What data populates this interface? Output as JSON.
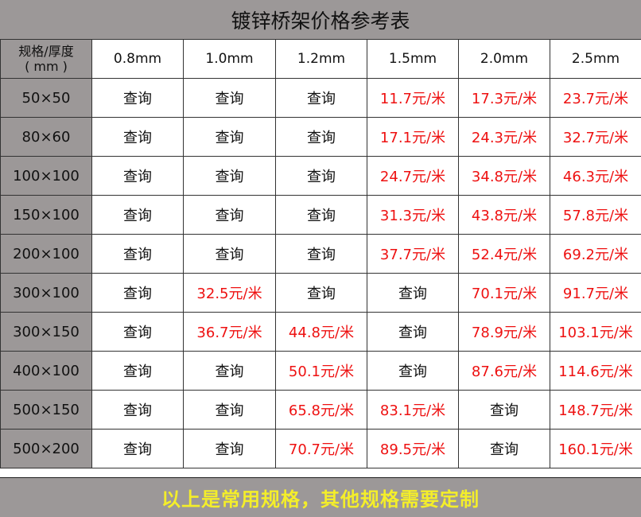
{
  "title": "镀锌桥架价格参考表",
  "header": {
    "corner_line1": "规格/厚度",
    "corner_line2": "( mm )",
    "thicknesses": [
      "0.8mm",
      "1.0mm",
      "1.2mm",
      "1.5mm",
      "2.0mm",
      "2.5mm"
    ]
  },
  "rows": [
    {
      "spec": "50×50",
      "cells": [
        "查询",
        "查询",
        "查询",
        "11.7元/米",
        "17.3元/米",
        "23.7元/米"
      ]
    },
    {
      "spec": "80×60",
      "cells": [
        "查询",
        "查询",
        "查询",
        "17.1元/米",
        "24.3元/米",
        "32.7元/米"
      ]
    },
    {
      "spec": "100×100",
      "cells": [
        "查询",
        "查询",
        "查询",
        "24.7元/米",
        "34.8元/米",
        "46.3元/米"
      ]
    },
    {
      "spec": "150×100",
      "cells": [
        "查询",
        "查询",
        "查询",
        "31.3元/米",
        "43.8元/米",
        "57.8元/米"
      ]
    },
    {
      "spec": "200×100",
      "cells": [
        "查询",
        "查询",
        "查询",
        "37.7元/米",
        "52.4元/米",
        "69.2元/米"
      ]
    },
    {
      "spec": "300×100",
      "cells": [
        "查询",
        "32.5元/米",
        "查询",
        "查询",
        "70.1元/米",
        "91.7元/米"
      ]
    },
    {
      "spec": "300×150",
      "cells": [
        "查询",
        "36.7元/米",
        "44.8元/米",
        "查询",
        "78.9元/米",
        "103.1元/米"
      ]
    },
    {
      "spec": "400×100",
      "cells": [
        "查询",
        "查询",
        "50.1元/米",
        "查询",
        "87.6元/米",
        "114.6元/米"
      ]
    },
    {
      "spec": "500×150",
      "cells": [
        "查询",
        "查询",
        "65.8元/米",
        "83.1元/米",
        "查询",
        "148.7元/米"
      ]
    },
    {
      "spec": "500×200",
      "cells": [
        "查询",
        "查询",
        "70.7元/米",
        "89.5元/米",
        "查询",
        "160.1元/米"
      ]
    }
  ],
  "footer": "以上是常用规格，其他规格需要定制",
  "colors": {
    "header_bg": "#9c9898",
    "price": "#ee1111",
    "footer_text": "#f4ee2a"
  }
}
